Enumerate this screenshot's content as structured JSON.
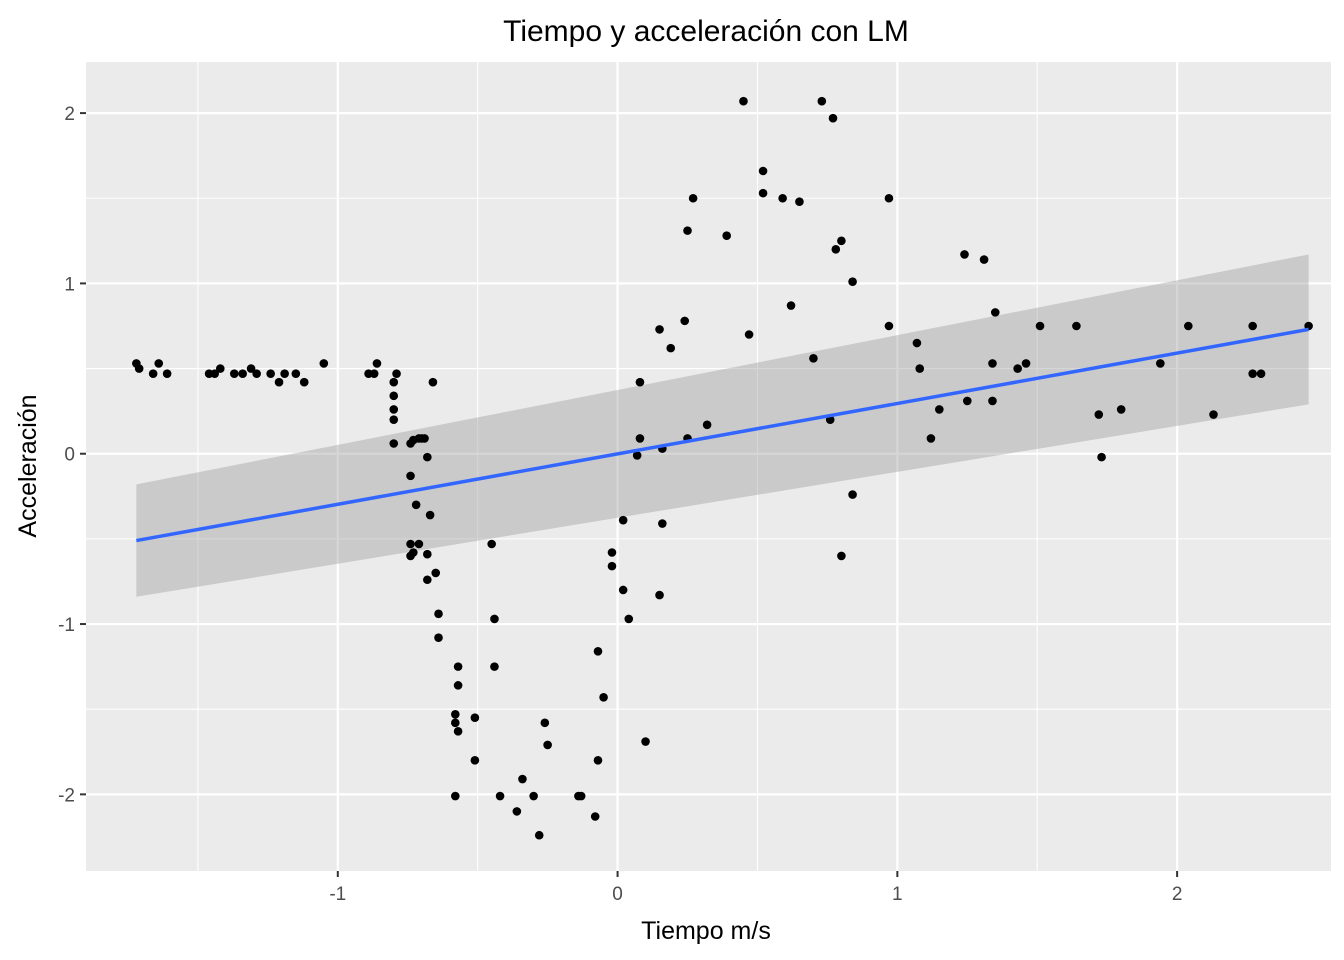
{
  "chart_data": {
    "type": "scatter",
    "title": "Tiempo y acceleración con LM",
    "xlabel": "Tiempo m/s",
    "ylabel": "Acceleración",
    "xlim": [
      -1.9,
      2.55
    ],
    "ylim": [
      -2.45,
      2.3
    ],
    "x_ticks": [
      -1,
      0,
      1,
      2
    ],
    "x_tick_labels": [
      "-1",
      "0",
      "1",
      "2"
    ],
    "y_ticks": [
      -2,
      -1,
      0,
      1,
      2
    ],
    "y_tick_labels": [
      "-2",
      "-1",
      "0",
      "1",
      "2"
    ],
    "x_minor_ticks": [
      -1.5,
      -0.5,
      0.5,
      1.5
    ],
    "y_minor_ticks": [
      -1.5,
      -0.5,
      0.5,
      1.5
    ],
    "grid": true,
    "legend": "none",
    "colors": {
      "panel": "#ebebeb",
      "grid": "#ffffff",
      "point": "#000000",
      "line": "#3366ff",
      "ribbon": "#999999"
    },
    "points": {
      "x": [
        -1.72,
        -1.71,
        -1.66,
        -1.64,
        -1.61,
        -1.46,
        -1.44,
        -1.42,
        -1.37,
        -1.34,
        -1.31,
        -1.29,
        -1.24,
        -1.21,
        -1.19,
        -1.15,
        -1.12,
        -1.05,
        -0.89,
        -0.87,
        -0.86,
        -0.8,
        -0.79,
        -0.8,
        -0.8,
        -0.8,
        -0.8,
        -0.74,
        -0.74,
        -0.73,
        -0.72,
        -0.71,
        -0.71,
        -0.7,
        -0.68,
        -0.67,
        -0.68,
        -0.68,
        -0.66,
        -0.69,
        -0.73,
        -0.74,
        -0.74,
        -0.65,
        -0.64,
        -0.64,
        -0.57,
        -0.58,
        -0.57,
        -0.58,
        -0.57,
        -0.58,
        -0.51,
        -0.51,
        -0.45,
        -0.44,
        -0.44,
        -0.42,
        -0.36,
        -0.34,
        -0.3,
        -0.28,
        -0.26,
        -0.25,
        -0.14,
        -0.13,
        -0.08,
        -0.07,
        -0.07,
        -0.05,
        -0.02,
        -0.02,
        0.02,
        0.02,
        0.04,
        0.07,
        0.08,
        0.08,
        0.1,
        0.15,
        0.15,
        0.16,
        0.16,
        0.19,
        0.24,
        0.25,
        0.25,
        0.27,
        0.32,
        0.39,
        0.45,
        0.47,
        0.52,
        0.52,
        0.59,
        0.62,
        0.65,
        0.7,
        0.73,
        0.76,
        0.77,
        0.78,
        0.8,
        0.8,
        0.84,
        0.84,
        0.97,
        0.97,
        1.07,
        1.08,
        1.12,
        1.15,
        1.24,
        1.25,
        1.31,
        1.34,
        1.34,
        1.35,
        1.43,
        1.46,
        1.51,
        1.64,
        1.72,
        1.73,
        1.8,
        1.94,
        2.04,
        2.13,
        2.27,
        2.27,
        2.3,
        2.47
      ],
      "y": [
        0.53,
        0.5,
        0.47,
        0.53,
        0.47,
        0.47,
        0.47,
        0.5,
        0.47,
        0.47,
        0.5,
        0.47,
        0.47,
        0.42,
        0.47,
        0.47,
        0.42,
        0.53,
        0.47,
        0.47,
        0.53,
        0.42,
        0.47,
        0.34,
        0.26,
        0.2,
        0.06,
        0.06,
        -0.13,
        0.08,
        -0.3,
        0.09,
        -0.53,
        0.09,
        -0.02,
        -0.36,
        -0.59,
        -0.74,
        0.42,
        0.09,
        -0.58,
        -0.6,
        -0.53,
        -0.7,
        -0.94,
        -1.08,
        -1.36,
        -2.01,
        -1.25,
        -1.58,
        -1.63,
        -1.53,
        -1.55,
        -1.8,
        -0.53,
        -0.97,
        -1.25,
        -2.01,
        -2.1,
        -1.91,
        -2.01,
        -2.24,
        -1.58,
        -1.71,
        -2.01,
        -2.01,
        -2.13,
        -1.8,
        -1.16,
        -1.43,
        -0.58,
        -0.66,
        -0.8,
        -0.39,
        -0.97,
        -0.01,
        0.42,
        0.09,
        -1.69,
        -0.83,
        0.73,
        0.03,
        -0.41,
        0.62,
        0.78,
        1.31,
        0.09,
        1.5,
        0.17,
        1.28,
        2.07,
        0.7,
        1.66,
        1.53,
        1.5,
        0.87,
        1.48,
        0.56,
        2.07,
        0.2,
        1.97,
        1.2,
        1.25,
        -0.6,
        1.01,
        -0.24,
        1.5,
        0.75,
        0.65,
        0.5,
        0.09,
        0.26,
        1.17,
        0.31,
        1.14,
        0.53,
        0.31,
        0.83,
        0.5,
        0.53,
        0.75,
        0.75,
        0.23,
        -0.02,
        0.26,
        0.53,
        0.75,
        0.23,
        0.75,
        0.47,
        0.47,
        0.75
      ]
    },
    "lm_fit": {
      "x": [
        -1.72,
        2.47
      ],
      "y": [
        -0.51,
        0.73
      ],
      "ci_upper": [
        -0.18,
        1.17
      ],
      "ci_lower": [
        -0.84,
        0.29
      ]
    }
  }
}
